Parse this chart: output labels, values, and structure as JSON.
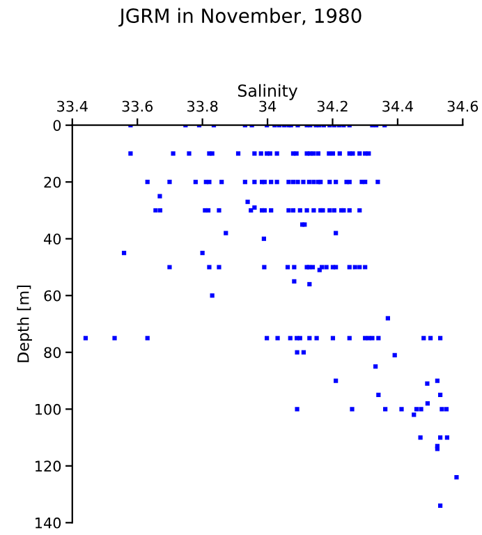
{
  "chart_data": {
    "type": "scatter",
    "title": "JGRM in November, 1980",
    "xlabel": "Salinity",
    "ylabel": "Depth [m]",
    "xlim": [
      33.4,
      34.6
    ],
    "xticks": [
      33.4,
      33.6,
      33.8,
      34,
      34.2,
      34.4,
      34.6
    ],
    "ylim": [
      140,
      0
    ],
    "yticks": [
      0,
      20,
      40,
      60,
      80,
      100,
      120,
      140
    ],
    "marker": "square",
    "grid": false,
    "series": [
      {
        "color": "#0000ff",
        "x": [
          33.579,
          33.748,
          33.79,
          33.835,
          33.931,
          33.952,
          33.998,
          34.022,
          34.036,
          34.051,
          34.065,
          34.072,
          34.093,
          34.121,
          34.131,
          34.149,
          34.159,
          34.173,
          34.191,
          34.205,
          34.22,
          34.234,
          34.252,
          34.322,
          34.334,
          34.36,
          33.579,
          33.71,
          33.759,
          33.821,
          33.83,
          33.91,
          33.96,
          33.98,
          33.998,
          34.008,
          34.029,
          34.079,
          34.089,
          34.121,
          34.131,
          34.142,
          34.156,
          34.189,
          34.201,
          34.222,
          34.252,
          34.262,
          34.283,
          34.3,
          34.311,
          33.631,
          33.699,
          33.779,
          33.811,
          33.821,
          33.859,
          33.931,
          33.96,
          33.983,
          33.991,
          34.011,
          34.029,
          34.065,
          34.079,
          34.093,
          34.11,
          34.128,
          34.142,
          34.156,
          34.163,
          34.191,
          34.21,
          34.243,
          34.252,
          34.29,
          34.3,
          34.339,
          33.669,
          33.939,
          33.96,
          33.656,
          33.67,
          33.808,
          33.818,
          33.851,
          33.949,
          33.983,
          33.991,
          34.011,
          34.065,
          34.079,
          34.1,
          34.121,
          34.142,
          34.163,
          34.17,
          34.191,
          34.205,
          34.227,
          34.234,
          34.252,
          34.283,
          34.107,
          34.114,
          33.872,
          34.21,
          33.989,
          33.559,
          33.8,
          33.699,
          33.821,
          33.851,
          33.99,
          34.062,
          34.082,
          34.121,
          34.128,
          34.139,
          34.16,
          34.167,
          34.181,
          34.201,
          34.21,
          34.252,
          34.269,
          34.283,
          34.3,
          34.082,
          34.129,
          33.83,
          34.37,
          33.441,
          33.53,
          33.631,
          33.998,
          34.031,
          34.07,
          34.09,
          34.1,
          34.129,
          34.151,
          34.201,
          34.252,
          34.3,
          34.311,
          34.322,
          34.341,
          34.48,
          34.501,
          34.531,
          34.091,
          34.111,
          34.391,
          34.332,
          34.21,
          34.522,
          34.491,
          34.341,
          34.531,
          34.492,
          34.091,
          34.26,
          34.362,
          34.412,
          34.458,
          34.472,
          34.536,
          34.55,
          34.45,
          34.47,
          34.531,
          34.552,
          34.522,
          34.522,
          34.581,
          34.531
        ],
        "values": [
          0,
          0,
          0,
          0,
          0,
          0,
          0,
          0,
          0,
          0,
          0,
          0,
          0,
          0,
          0,
          0,
          0,
          0,
          0,
          0,
          0,
          0,
          0,
          0,
          0,
          0,
          10,
          10,
          10,
          10,
          10,
          10,
          10,
          10,
          10,
          10,
          10,
          10,
          10,
          10,
          10,
          10,
          10,
          10,
          10,
          10,
          10,
          10,
          10,
          10,
          10,
          20,
          20,
          20,
          20,
          20,
          20,
          20,
          20,
          20,
          20,
          20,
          20,
          20,
          20,
          20,
          20,
          20,
          20,
          20,
          20,
          20,
          20,
          20,
          20,
          20,
          20,
          20,
          25,
          27,
          29,
          30,
          30,
          30,
          30,
          30,
          30,
          30,
          30,
          30,
          30,
          30,
          30,
          30,
          30,
          30,
          30,
          30,
          30,
          30,
          30,
          30,
          30,
          35,
          35,
          38,
          38,
          40,
          45,
          45,
          50,
          50,
          50,
          50,
          50,
          50,
          50,
          50,
          50,
          51,
          50,
          50,
          50,
          50,
          50,
          50,
          50,
          50,
          55,
          56,
          60,
          68,
          75,
          75,
          75,
          75,
          75,
          75,
          75,
          75,
          75,
          75,
          75,
          75,
          75,
          75,
          75,
          75,
          75,
          75,
          75,
          80,
          80,
          81,
          85,
          90,
          90,
          91,
          95,
          95,
          98,
          100,
          100,
          100,
          100,
          100,
          100,
          100,
          100,
          102,
          110,
          110,
          110,
          113,
          114,
          124,
          134
        ]
      }
    ]
  }
}
